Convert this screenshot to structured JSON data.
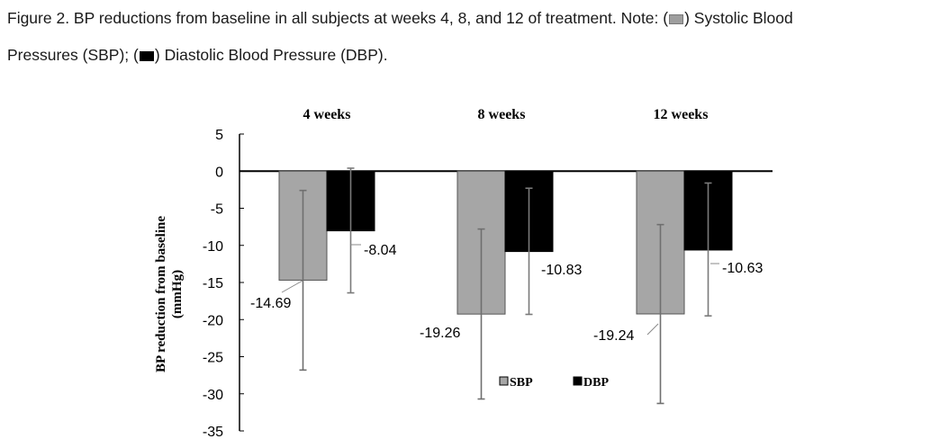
{
  "caption": {
    "figure_label": "Figure 2.",
    "text": " BP reductions from baseline in all subjects at weeks 4, 8, and 12 of treatment. ",
    "note_label": "Note:",
    "sbp_open": " (",
    "sbp_text": ") Systolic Blood",
    "line2_start": "Pressures (SBP); (",
    "dbp_text": ") Diastolic Blood Pressure (DBP)."
  },
  "colors": {
    "sbp": "#a6a6a6",
    "dbp": "#000000",
    "axis": "#000000",
    "error": "#808080"
  },
  "chart_data": {
    "type": "bar",
    "categories": [
      "4 weeks",
      "8 weeks",
      "12 weeks"
    ],
    "series": [
      {
        "name": "SBP",
        "values": [
          -14.69,
          -19.26,
          -19.24
        ],
        "labels": [
          "-14.69",
          "-19.26",
          "-19.24"
        ],
        "error_low": [
          -26.8,
          -30.7,
          -31.3
        ],
        "error_high": [
          -2.6,
          -7.8,
          -7.2
        ]
      },
      {
        "name": "DBP",
        "values": [
          -8.04,
          -10.83,
          -10.63
        ],
        "labels": [
          "-8.04",
          "-10.83",
          "-10.63"
        ],
        "error_low": [
          -16.4,
          -19.3,
          -19.5
        ],
        "error_high": [
          0.4,
          -2.3,
          -1.6
        ]
      }
    ],
    "ylabel": "BP reduction from baseline",
    "ylabel_unit": "(mmHg)",
    "ylim": [
      -35,
      5
    ],
    "yticks": [
      5,
      0,
      -5,
      -10,
      -15,
      -20,
      -25,
      -30,
      -35
    ],
    "ytick_labels": [
      "5",
      "0",
      "-5",
      "-10",
      "-15",
      "-20",
      "-25",
      "-30",
      "-35"
    ],
    "legend": [
      "SBP",
      "DBP"
    ],
    "legend_position": "bottom-center"
  }
}
